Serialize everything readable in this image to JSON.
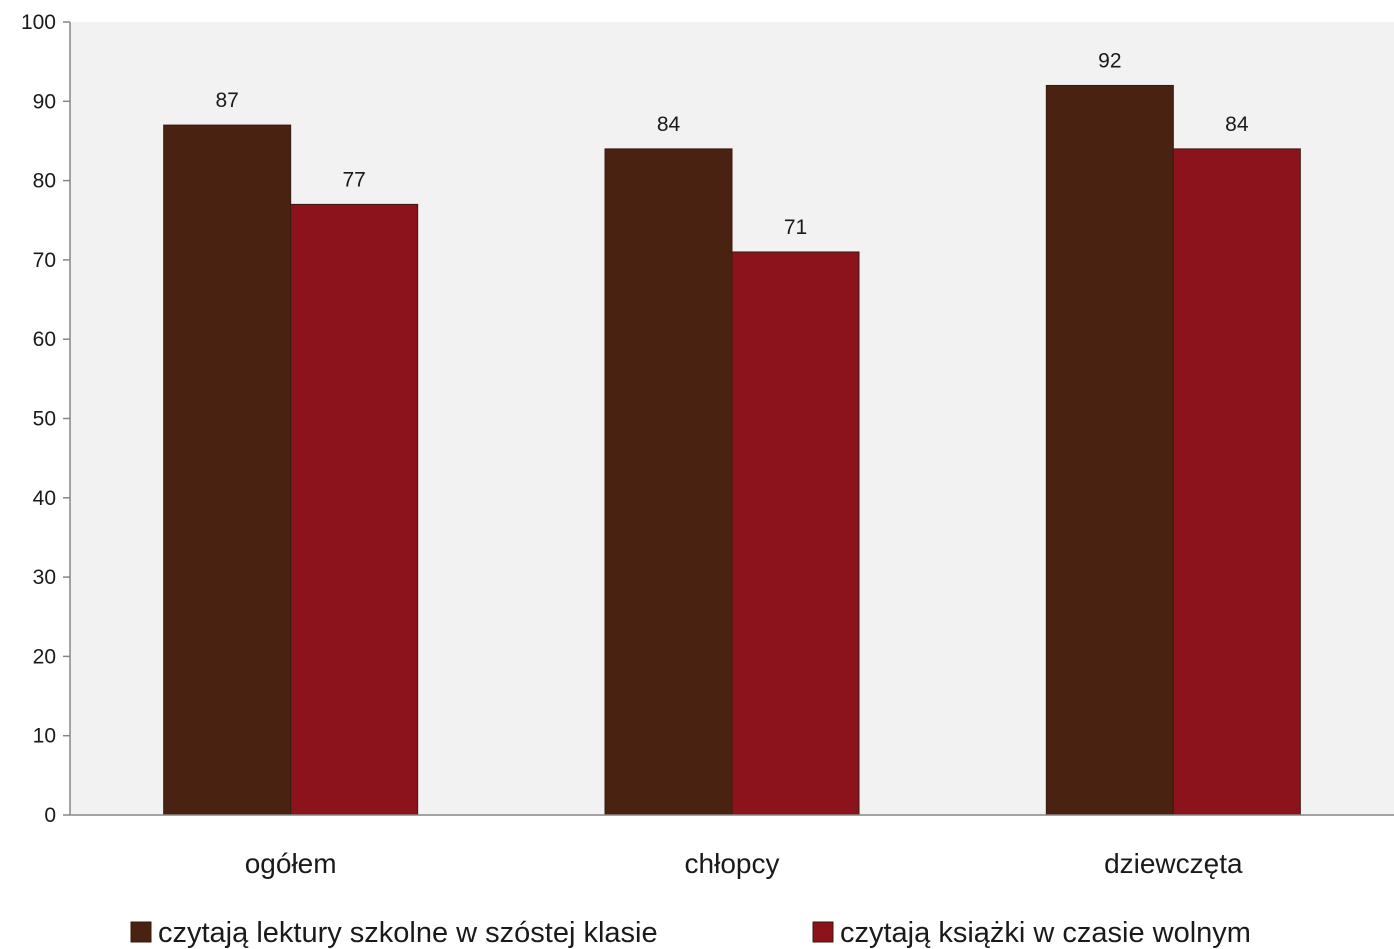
{
  "chart_data": {
    "type": "bar",
    "categories": [
      "ogółem",
      "chłopcy",
      "dziewczęta"
    ],
    "series": [
      {
        "name": "czytają lektury szkolne w szóstej klasie",
        "values": [
          87,
          84,
          92
        ],
        "color": "#4a2211"
      },
      {
        "name": "czytają książki w czasie wolnym",
        "values": [
          77,
          71,
          84
        ],
        "color": "#8c131b"
      }
    ],
    "ylim": [
      0,
      100
    ],
    "yticks": [
      0,
      10,
      20,
      30,
      40,
      50,
      60,
      70,
      80,
      90,
      100
    ],
    "grid": false,
    "legend_position": "bottom",
    "plot_background": "#f2f2f2"
  }
}
